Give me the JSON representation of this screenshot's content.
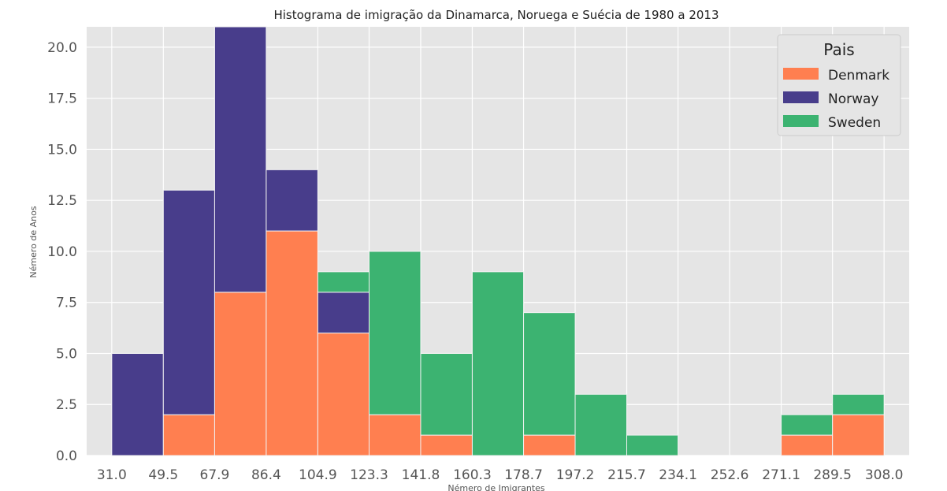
{
  "chart_data": {
    "type": "bar",
    "stacked": true,
    "title": "Histograma de imigração da Dinamarca, Noruega e Suécia de 1980 a 2013",
    "xlabel": "Némero de Imigrantes",
    "ylabel": "Némero de Anos",
    "bin_edges": [
      31.0,
      49.5,
      67.9,
      86.4,
      104.9,
      123.3,
      141.8,
      160.3,
      178.7,
      197.2,
      215.7,
      234.1,
      252.6,
      271.1,
      289.5,
      308.0
    ],
    "x_tick_labels": [
      "31.0",
      "49.5",
      "67.9",
      "86.4",
      "104.9",
      "123.3",
      "141.8",
      "160.3",
      "178.7",
      "197.2",
      "215.7",
      "234.1",
      "252.6",
      "271.1",
      "289.5",
      "308.0"
    ],
    "ylim": [
      0,
      21
    ],
    "y_ticks": [
      0,
      2.5,
      5,
      7.5,
      10,
      12.5,
      15,
      17.5,
      20
    ],
    "y_tick_labels": [
      "0.0",
      "2.5",
      "5.0",
      "7.5",
      "10.0",
      "12.5",
      "15.0",
      "17.5",
      "20.0"
    ],
    "series": [
      {
        "name": "Denmark",
        "color": "#ff7f50",
        "values": [
          0,
          2,
          8,
          11,
          6,
          2,
          1,
          0,
          1,
          0,
          0,
          0,
          0,
          1,
          2
        ]
      },
      {
        "name": "Norway",
        "color": "#483d8b",
        "values": [
          5,
          11,
          13,
          3,
          2,
          0,
          0,
          0,
          0,
          0,
          0,
          0,
          0,
          0,
          0
        ]
      },
      {
        "name": "Sweden",
        "color": "#3cb371",
        "values": [
          0,
          0,
          0,
          0,
          1,
          8,
          4,
          9,
          6,
          3,
          1,
          0,
          0,
          1,
          1
        ]
      }
    ],
    "legend": {
      "title": "Pais",
      "placement": "top-right"
    },
    "grid": true,
    "background": "#e5e5e5"
  }
}
